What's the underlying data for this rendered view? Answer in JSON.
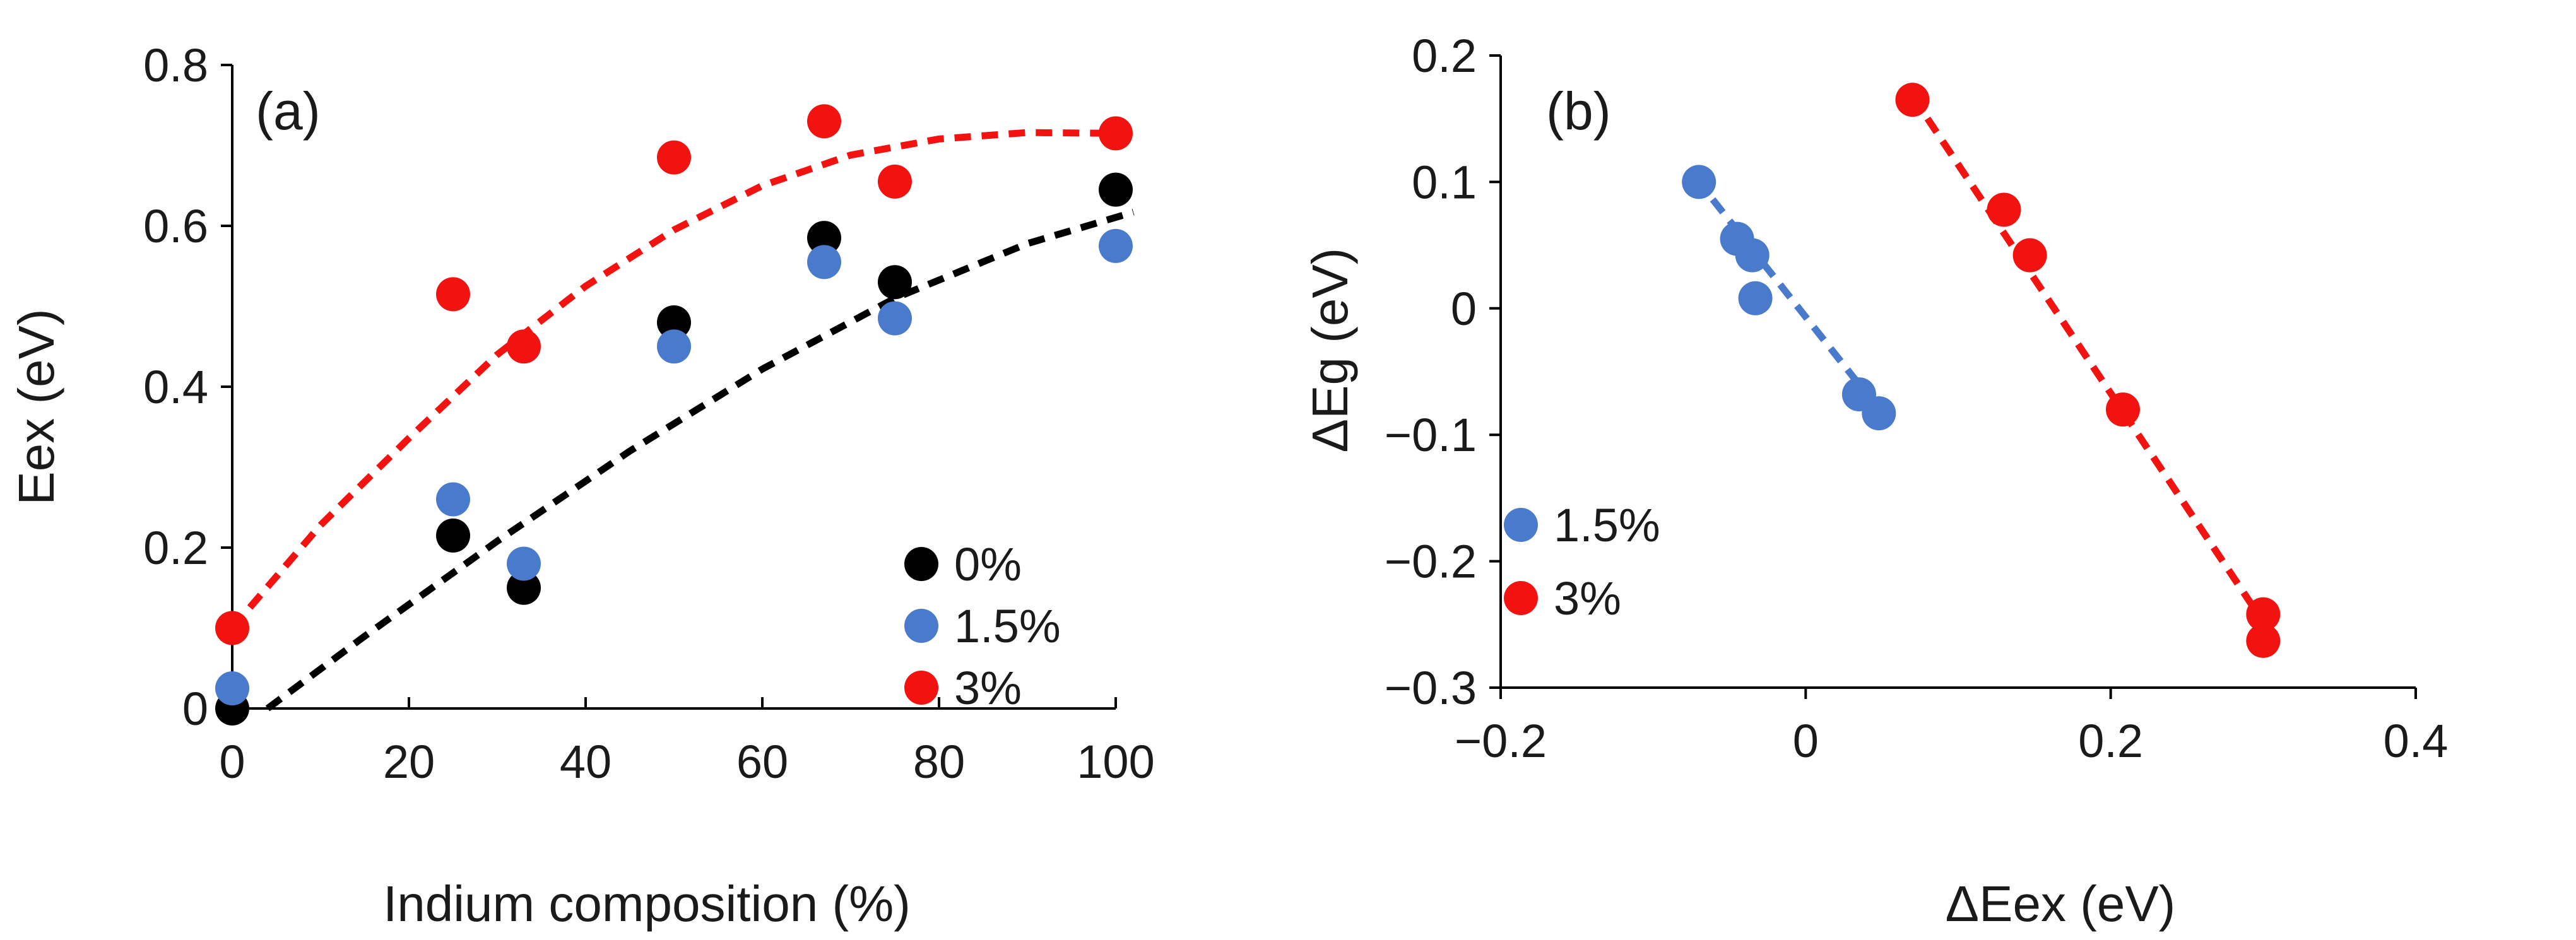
{
  "chart_data": [
    {
      "type": "scatter",
      "panel_label": "(a)",
      "xlabel": "Indium composition (%)",
      "ylabel": "Eex (eV)",
      "xlim": [
        0,
        100
      ],
      "ylim": [
        0,
        0.8
      ],
      "xticks": [
        0,
        20,
        40,
        60,
        80,
        100
      ],
      "yticks": [
        0,
        0.2,
        0.4,
        0.6,
        0.8
      ],
      "xtick_labels": [
        "0",
        "20",
        "40",
        "60",
        "80",
        "100"
      ],
      "ytick_labels": [
        "0",
        "0.2",
        "0.4",
        "0.6",
        "0.8"
      ],
      "grid": false,
      "legend_position": "bottom-right",
      "series": [
        {
          "name": "0%",
          "color": "#000000",
          "x": [
            0,
            25,
            33,
            50,
            67,
            75,
            100
          ],
          "y": [
            0.0,
            0.215,
            0.15,
            0.48,
            0.585,
            0.53,
            0.645
          ]
        },
        {
          "name": "1.5%",
          "color": "#4a7acb",
          "x": [
            0,
            25,
            33,
            50,
            67,
            75,
            100
          ],
          "y": [
            0.025,
            0.26,
            0.18,
            0.45,
            0.555,
            0.485,
            0.575
          ]
        },
        {
          "name": "3%",
          "color": "#f2120f",
          "x": [
            0,
            25,
            33,
            50,
            67,
            75,
            100
          ],
          "y": [
            0.1,
            0.515,
            0.45,
            0.685,
            0.73,
            0.655,
            0.715
          ]
        }
      ],
      "fits": [
        {
          "series": "0%",
          "color": "#000000",
          "x": [
            4,
            15,
            30,
            45,
            60,
            75,
            90,
            102
          ],
          "y": [
            0.0,
            0.09,
            0.208,
            0.32,
            0.422,
            0.51,
            0.578,
            0.617
          ]
        },
        {
          "series": "3%",
          "color": "#f2120f",
          "x": [
            0,
            10,
            20,
            30,
            40,
            50,
            60,
            70,
            80,
            90,
            100
          ],
          "y": [
            0.1,
            0.228,
            0.336,
            0.44,
            0.525,
            0.595,
            0.65,
            0.688,
            0.708,
            0.716,
            0.715
          ]
        }
      ]
    },
    {
      "type": "scatter",
      "panel_label": "(b)",
      "xlabel": "ΔEex (eV)",
      "ylabel": "ΔEg (eV)",
      "xlim": [
        -0.2,
        0.4
      ],
      "ylim": [
        -0.3,
        0.2
      ],
      "xticks": [
        -0.2,
        0,
        0.2,
        0.4
      ],
      "yticks": [
        -0.3,
        -0.2,
        -0.1,
        0,
        0.1,
        0.2
      ],
      "xtick_labels": [
        "−0.2",
        "0",
        "0.2",
        "0.4"
      ],
      "ytick_labels": [
        "−0.3",
        "−0.2",
        "−0.1",
        "0",
        "0.1",
        "0.2"
      ],
      "grid": false,
      "legend_position": "bottom-left",
      "series": [
        {
          "name": "1.5%",
          "color": "#4a7acb",
          "x": [
            -0.07,
            -0.045,
            -0.035,
            -0.033,
            0.035,
            0.048
          ],
          "y": [
            0.1,
            0.055,
            0.042,
            0.008,
            -0.068,
            -0.083
          ]
        },
        {
          "name": "3%",
          "color": "#f2120f",
          "x": [
            0.07,
            0.13,
            0.147,
            0.208,
            0.3,
            0.3
          ],
          "y": [
            0.165,
            0.078,
            0.042,
            -0.08,
            -0.242,
            -0.263
          ]
        }
      ],
      "fits": [
        {
          "series": "1.5%",
          "color": "#4a7acb",
          "x": [
            -0.072,
            0.05
          ],
          "y": [
            0.103,
            -0.083
          ]
        },
        {
          "series": "3%",
          "color": "#f2120f",
          "x": [
            0.07,
            0.3
          ],
          "y": [
            0.168,
            -0.248
          ]
        }
      ]
    }
  ]
}
